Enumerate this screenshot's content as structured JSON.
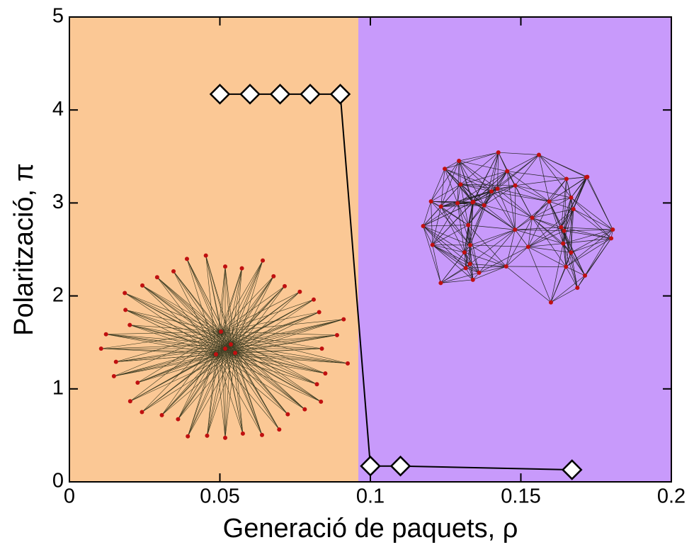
{
  "chart_data": {
    "type": "line",
    "xlabel": "Generació de paquets, ρ",
    "ylabel": "Polarització, π",
    "x": [
      0.05,
      0.06,
      0.07,
      0.08,
      0.09,
      0.1,
      0.11,
      0.167
    ],
    "series": [
      {
        "color": "#000000",
        "values": [
          4.17,
          4.17,
          4.17,
          4.17,
          4.17,
          0.17,
          0.17,
          0.13
        ]
      }
    ],
    "xlim": [
      0,
      0.2
    ],
    "xticks": [
      0,
      0.05,
      0.1,
      0.15,
      0.2
    ],
    "ylim": [
      0,
      5
    ],
    "yticks": [
      0,
      1,
      2,
      3,
      4,
      5
    ],
    "marker": "diamond",
    "shaded_regions": [
      {
        "xmin": 0,
        "xmax": 0.096,
        "color": "#fbc895"
      },
      {
        "xmin": 0.096,
        "xmax": 0.2,
        "color": "#c89afb"
      }
    ]
  }
}
